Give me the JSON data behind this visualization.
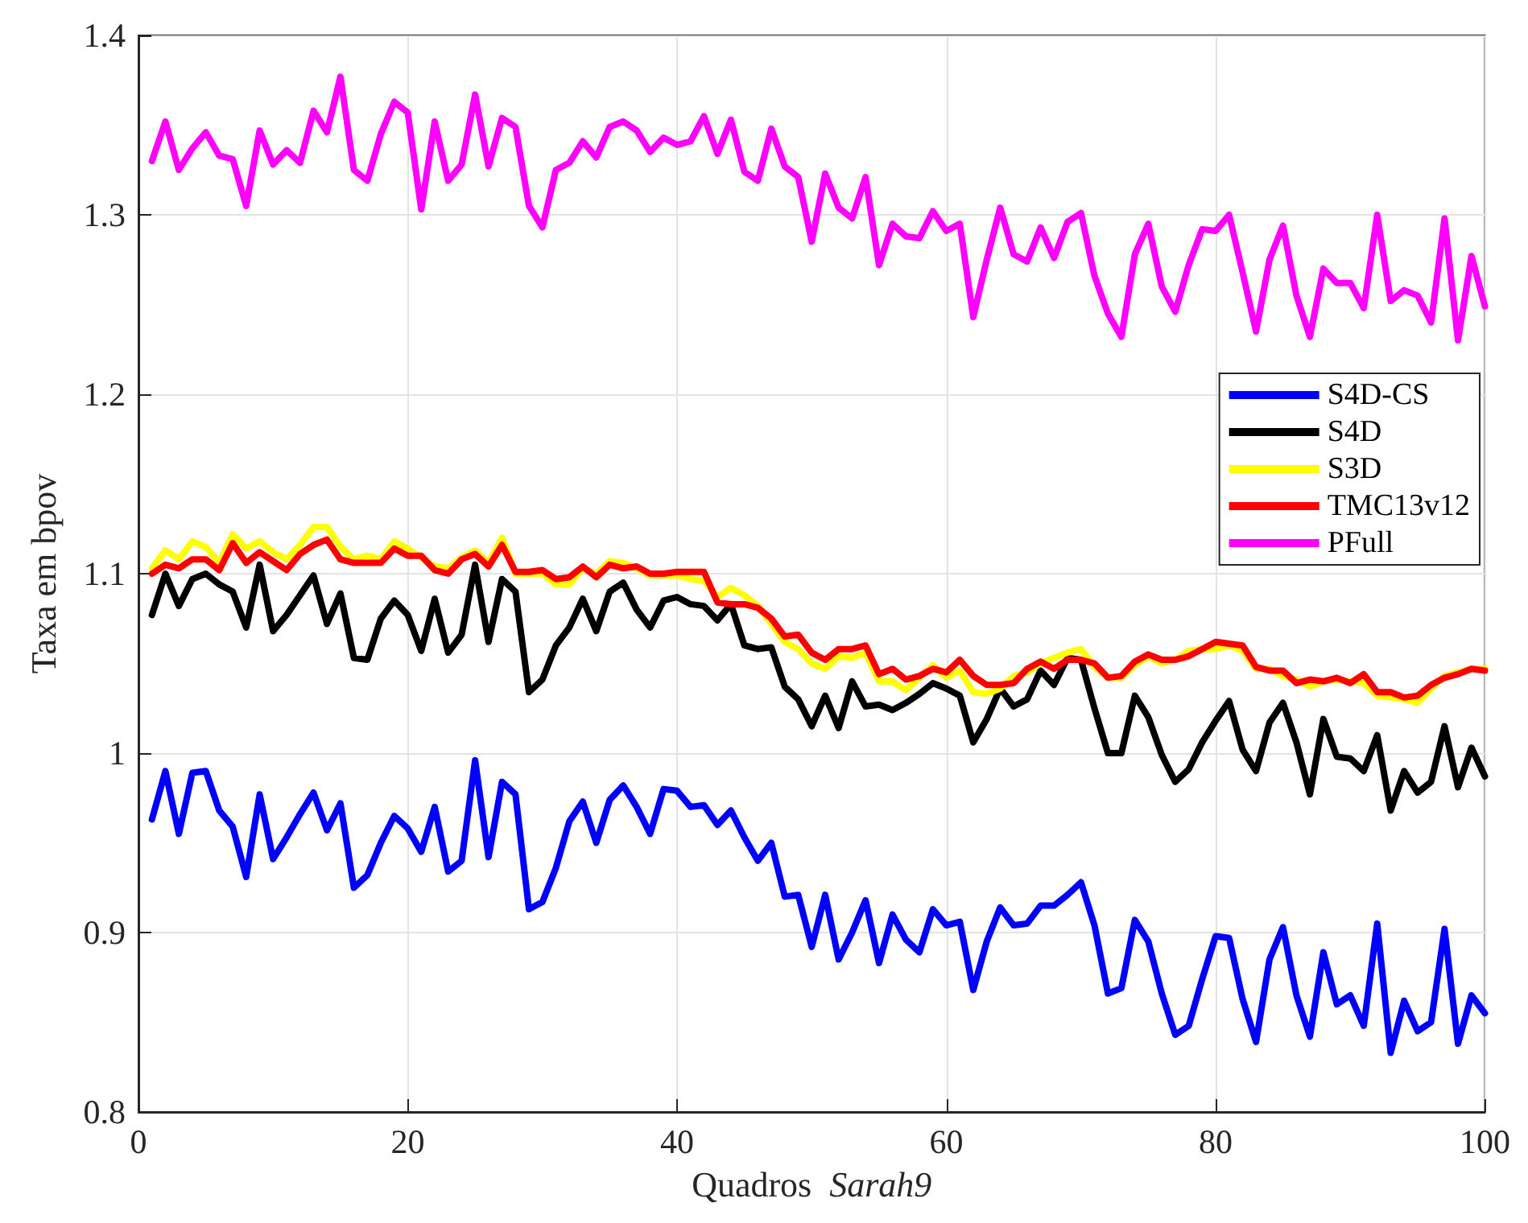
{
  "chart_data": {
    "type": "line",
    "xlabel": "Quadros  $_{}$Sarah9",
    "ylabel": "Taxa em bpov",
    "x": [
      1,
      2,
      3,
      4,
      5,
      6,
      7,
      8,
      9,
      10,
      11,
      12,
      13,
      14,
      15,
      16,
      17,
      18,
      19,
      20,
      21,
      22,
      23,
      24,
      25,
      26,
      27,
      28,
      29,
      30,
      31,
      32,
      33,
      34,
      35,
      36,
      37,
      38,
      39,
      40,
      41,
      42,
      43,
      44,
      45,
      46,
      47,
      48,
      49,
      50,
      51,
      52,
      53,
      54,
      55,
      56,
      57,
      58,
      59,
      60,
      61,
      62,
      63,
      64,
      65,
      66,
      67,
      68,
      69,
      70,
      71,
      72,
      73,
      74,
      75,
      76,
      77,
      78,
      79,
      80,
      81,
      82,
      83,
      84,
      85,
      86,
      87,
      88,
      89,
      90,
      91,
      92,
      93,
      94,
      95,
      96,
      97,
      98,
      99,
      100
    ],
    "series": [
      {
        "name": "S4D-CS",
        "color": "#0000ff",
        "values": [
          0.963,
          0.99,
          0.955,
          0.989,
          0.99,
          0.968,
          0.959,
          0.931,
          0.977,
          0.941,
          0.953,
          0.966,
          0.978,
          0.957,
          0.972,
          0.925,
          0.932,
          0.95,
          0.965,
          0.958,
          0.945,
          0.97,
          0.934,
          0.94,
          0.996,
          0.942,
          0.984,
          0.977,
          0.913,
          0.917,
          0.936,
          0.962,
          0.973,
          0.95,
          0.974,
          0.982,
          0.97,
          0.955,
          0.98,
          0.979,
          0.97,
          0.971,
          0.96,
          0.968,
          0.953,
          0.94,
          0.95,
          0.92,
          0.921,
          0.892,
          0.921,
          0.885,
          0.9,
          0.918,
          0.883,
          0.91,
          0.896,
          0.889,
          0.913,
          0.904,
          0.906,
          0.868,
          0.895,
          0.914,
          0.904,
          0.905,
          0.915,
          0.915,
          0.921,
          0.928,
          0.904,
          0.866,
          0.869,
          0.907,
          0.895,
          0.866,
          0.843,
          0.848,
          0.874,
          0.898,
          0.897,
          0.863,
          0.839,
          0.885,
          0.903,
          0.865,
          0.842,
          0.889,
          0.86,
          0.865,
          0.848,
          0.905,
          0.833,
          0.862,
          0.845,
          0.85,
          0.902,
          0.838,
          0.865,
          0.855
        ]
      },
      {
        "name": "S4D",
        "color": "#000000",
        "values": [
          1.077,
          1.1,
          1.082,
          1.097,
          1.1,
          1.094,
          1.09,
          1.07,
          1.105,
          1.068,
          1.077,
          1.088,
          1.099,
          1.072,
          1.089,
          1.053,
          1.052,
          1.075,
          1.085,
          1.077,
          1.057,
          1.086,
          1.056,
          1.066,
          1.105,
          1.062,
          1.097,
          1.09,
          1.034,
          1.041,
          1.06,
          1.07,
          1.086,
          1.068,
          1.09,
          1.095,
          1.08,
          1.07,
          1.085,
          1.087,
          1.083,
          1.082,
          1.074,
          1.083,
          1.06,
          1.058,
          1.059,
          1.037,
          1.03,
          1.015,
          1.032,
          1.014,
          1.04,
          1.026,
          1.027,
          1.024,
          1.028,
          1.033,
          1.039,
          1.036,
          1.032,
          1.006,
          1.019,
          1.036,
          1.026,
          1.03,
          1.046,
          1.038,
          1.053,
          1.052,
          1.025,
          1.0,
          1.0,
          1.032,
          1.02,
          0.999,
          0.984,
          0.991,
          1.006,
          1.018,
          1.029,
          1.002,
          0.99,
          1.017,
          1.028,
          1.006,
          0.977,
          1.019,
          0.998,
          0.997,
          0.99,
          1.01,
          0.968,
          0.99,
          0.978,
          0.984,
          1.015,
          0.981,
          1.003,
          0.987
        ]
      },
      {
        "name": "S3D",
        "color": "#ffff00",
        "values": [
          1.103,
          1.113,
          1.108,
          1.118,
          1.115,
          1.106,
          1.122,
          1.114,
          1.118,
          1.112,
          1.108,
          1.116,
          1.126,
          1.126,
          1.115,
          1.108,
          1.11,
          1.108,
          1.118,
          1.114,
          1.109,
          1.104,
          1.103,
          1.109,
          1.113,
          1.106,
          1.12,
          1.1,
          1.1,
          1.1,
          1.094,
          1.094,
          1.103,
          1.1,
          1.107,
          1.106,
          1.103,
          1.099,
          1.099,
          1.099,
          1.097,
          1.096,
          1.087,
          1.092,
          1.088,
          1.082,
          1.072,
          1.062,
          1.058,
          1.05,
          1.047,
          1.054,
          1.053,
          1.056,
          1.04,
          1.04,
          1.035,
          1.042,
          1.049,
          1.042,
          1.046,
          1.034,
          1.033,
          1.036,
          1.043,
          1.045,
          1.05,
          1.053,
          1.056,
          1.058,
          1.048,
          1.042,
          1.042,
          1.049,
          1.054,
          1.05,
          1.052,
          1.057,
          1.058,
          1.058,
          1.06,
          1.057,
          1.047,
          1.047,
          1.043,
          1.041,
          1.037,
          1.04,
          1.041,
          1.04,
          1.039,
          1.032,
          1.031,
          1.03,
          1.028,
          1.036,
          1.043,
          1.045,
          1.047,
          1.047
        ]
      },
      {
        "name": "TMC13v12",
        "color": "#ff0000",
        "values": [
          1.1,
          1.105,
          1.103,
          1.108,
          1.108,
          1.102,
          1.117,
          1.106,
          1.112,
          1.107,
          1.102,
          1.111,
          1.116,
          1.119,
          1.108,
          1.106,
          1.106,
          1.106,
          1.114,
          1.11,
          1.11,
          1.102,
          1.1,
          1.108,
          1.111,
          1.104,
          1.116,
          1.101,
          1.101,
          1.102,
          1.097,
          1.098,
          1.104,
          1.098,
          1.105,
          1.103,
          1.104,
          1.1,
          1.1,
          1.101,
          1.101,
          1.101,
          1.084,
          1.083,
          1.083,
          1.081,
          1.075,
          1.065,
          1.066,
          1.056,
          1.052,
          1.058,
          1.058,
          1.06,
          1.044,
          1.047,
          1.041,
          1.043,
          1.047,
          1.045,
          1.052,
          1.043,
          1.038,
          1.038,
          1.039,
          1.047,
          1.051,
          1.047,
          1.052,
          1.052,
          1.05,
          1.042,
          1.043,
          1.051,
          1.055,
          1.052,
          1.052,
          1.054,
          1.058,
          1.062,
          1.061,
          1.06,
          1.048,
          1.046,
          1.046,
          1.039,
          1.041,
          1.04,
          1.042,
          1.039,
          1.044,
          1.034,
          1.034,
          1.031,
          1.032,
          1.038,
          1.042,
          1.044,
          1.047,
          1.046
        ]
      },
      {
        "name": "PFull",
        "color": "#ff00ff",
        "values": [
          1.33,
          1.352,
          1.325,
          1.337,
          1.346,
          1.333,
          1.331,
          1.305,
          1.347,
          1.328,
          1.336,
          1.329,
          1.358,
          1.346,
          1.377,
          1.325,
          1.319,
          1.345,
          1.363,
          1.357,
          1.303,
          1.352,
          1.319,
          1.328,
          1.367,
          1.327,
          1.354,
          1.349,
          1.305,
          1.293,
          1.325,
          1.329,
          1.341,
          1.332,
          1.349,
          1.352,
          1.347,
          1.335,
          1.343,
          1.339,
          1.341,
          1.355,
          1.334,
          1.353,
          1.324,
          1.319,
          1.348,
          1.327,
          1.321,
          1.285,
          1.323,
          1.304,
          1.298,
          1.321,
          1.272,
          1.295,
          1.288,
          1.287,
          1.302,
          1.291,
          1.295,
          1.243,
          1.275,
          1.304,
          1.278,
          1.274,
          1.293,
          1.276,
          1.296,
          1.301,
          1.266,
          1.245,
          1.232,
          1.278,
          1.295,
          1.26,
          1.246,
          1.272,
          1.292,
          1.291,
          1.3,
          1.268,
          1.235,
          1.275,
          1.294,
          1.255,
          1.232,
          1.27,
          1.262,
          1.262,
          1.248,
          1.3,
          1.252,
          1.258,
          1.255,
          1.24,
          1.298,
          1.23,
          1.277,
          1.249
        ]
      }
    ],
    "xlim": [
      0,
      100
    ],
    "xticks": [
      0,
      20,
      40,
      60,
      80,
      100
    ],
    "ylim": [
      0.8,
      1.4
    ],
    "yticks": [
      0.8,
      0.9,
      1,
      1.1,
      1.2,
      1.3,
      1.4
    ],
    "grid": true,
    "legend": "right",
    "marker": "none",
    "line_style": "solid"
  }
}
